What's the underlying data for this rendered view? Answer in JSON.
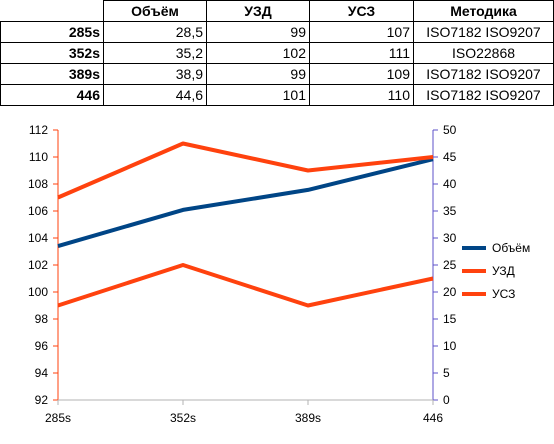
{
  "table": {
    "headers": [
      "",
      "Объём",
      "УЗД",
      "УСЗ",
      "Методика"
    ],
    "rows": [
      {
        "label": "285s",
        "volume": "28,5",
        "uzd": "99",
        "usz": "107",
        "method": "ISO7182 ISO9207"
      },
      {
        "label": "352s",
        "volume": "35,2",
        "uzd": "102",
        "usz": "111",
        "method": "ISO22868"
      },
      {
        "label": "389s",
        "volume": "38,9",
        "uzd": "99",
        "usz": "109",
        "method": "ISO7182 ISO9207"
      },
      {
        "label": "446",
        "volume": "44,6",
        "uzd": "101",
        "usz": "110",
        "method": "ISO7182 ISO9207"
      }
    ]
  },
  "chart_data": {
    "type": "line",
    "categories": [
      "285s",
      "352s",
      "389s",
      "446"
    ],
    "y_left": {
      "min": 92,
      "max": 112,
      "step": 2,
      "ticks": [
        "92",
        "94",
        "96",
        "98",
        "100",
        "102",
        "104",
        "106",
        "108",
        "110",
        "112"
      ]
    },
    "y_right": {
      "min": 0,
      "max": 50,
      "step": 5,
      "ticks": [
        "0",
        "5",
        "10",
        "15",
        "20",
        "25",
        "30",
        "35",
        "40",
        "45",
        "50"
      ]
    },
    "series": [
      {
        "name": "Объём",
        "axis": "right",
        "color": "#004586",
        "values": [
          28.5,
          35.2,
          38.9,
          44.6
        ]
      },
      {
        "name": "УЗД",
        "axis": "left",
        "color": "#ff420e",
        "values": [
          99,
          102,
          99,
          101
        ]
      },
      {
        "name": "УСЗ",
        "axis": "left",
        "color": "#ff420e",
        "values": [
          107,
          111,
          109,
          110
        ]
      }
    ],
    "left_axis_color": "#ff420e",
    "right_axis_color": "#5c52c8",
    "legend_position": "right",
    "grid": false
  }
}
